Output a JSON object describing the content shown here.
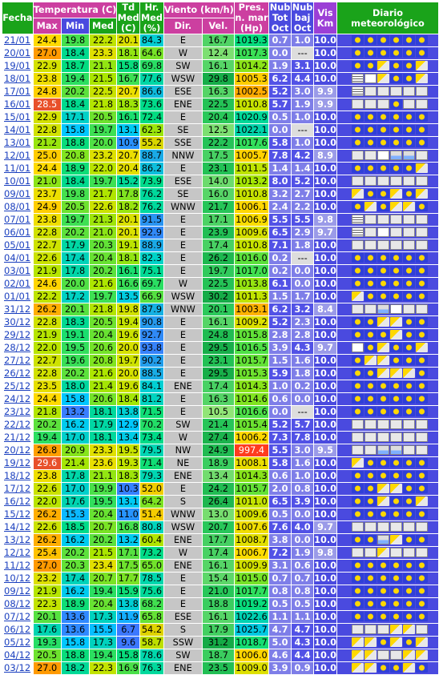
{
  "headers": {
    "fecha": "Fecha",
    "temperatura": "Temperatura (C)",
    "max": "Max",
    "min": "Min",
    "med": "Med",
    "td": "Td Med (C)",
    "hr": "Hr. Med (%)",
    "viento": "Viento (km/h)",
    "dir": "Dir.",
    "vel": "Vel.",
    "pres": "Pres. n. mar (Hp)",
    "nubtot": "Nub Tot Oct",
    "nubbaj": "Nub baj Oct",
    "vis": "Vis Km",
    "diario": "Diario meteorológico"
  },
  "colors": {
    "green": "#1aa31a",
    "pink": "#cc3fa0",
    "blue": "#4a4adf",
    "purple": "#9b3fd6"
  },
  "rows": [
    [
      "21/01",
      "24.4",
      "19.8",
      "22.2",
      "20.1",
      "84.3",
      "E",
      "16.7",
      "1019.3",
      "0.7",
      "1.0",
      "10.0",
      "sun sun sun sun sun sun"
    ],
    [
      "20/01",
      "27.0",
      "18.4",
      "23.3",
      "18.1",
      "64.6",
      "W",
      "12.4",
      "1017.3",
      "0.0",
      "---",
      "10.0",
      "sun sun sun sun sun sun"
    ],
    [
      "19/01",
      "22.9",
      "18.7",
      "21.1",
      "15.8",
      "69.8",
      "SW",
      "16.1",
      "1014.2",
      "1.9",
      "3.1",
      "10.0",
      "sun sun pc sun sun pc"
    ],
    [
      "18/01",
      "23.8",
      "19.4",
      "21.5",
      "16.7",
      "77.6",
      "WSW",
      "29.8",
      "1005.3",
      "6.2",
      "4.4",
      "10.0",
      "fog storm pc sun sun pc"
    ],
    [
      "17/01",
      "24.8",
      "20.2",
      "22.5",
      "20.7",
      "86.6",
      "ESE",
      "16.3",
      "1002.5",
      "5.2",
      "3.0",
      "9.9",
      "fog cloud cloud cloud cloud cloud"
    ],
    [
      "16/01",
      "28.5",
      "18.4",
      "21.8",
      "18.3",
      "73.6",
      "ENE",
      "22.5",
      "1010.8",
      "5.7",
      "1.9",
      "9.9",
      "cloud cloud cloud sun cloud cloud"
    ],
    [
      "15/01",
      "22.9",
      "17.1",
      "20.5",
      "16.1",
      "72.4",
      "E",
      "20.4",
      "1020.9",
      "0.5",
      "1.0",
      "10.0",
      "sun sun sun sun sun sun"
    ],
    [
      "14/01",
      "22.8",
      "15.8",
      "19.7",
      "13.1",
      "62.3",
      "SE",
      "12.5",
      "1022.1",
      "0.0",
      "---",
      "10.0",
      "sun sun sun sun sun sun"
    ],
    [
      "13/01",
      "21.2",
      "18.8",
      "20.0",
      "10.9",
      "55.2",
      "SSE",
      "22.2",
      "1017.6",
      "5.8",
      "1.0",
      "10.0",
      "sun sun sun sun sun sun"
    ],
    [
      "12/01",
      "25.0",
      "20.8",
      "23.2",
      "20.7",
      "88.7",
      "NNW",
      "17.5",
      "1005.7",
      "7.8",
      "4.2",
      "8.9",
      "cloud cloud storm rain rain cloud"
    ],
    [
      "11/01",
      "24.4",
      "18.9",
      "22.0",
      "20.4",
      "86.2",
      "E",
      "23.1",
      "1011.5",
      "1.4",
      "1.4",
      "10.0",
      "sun sun sun sun sun pc"
    ],
    [
      "10/01",
      "21.0",
      "18.4",
      "19.7",
      "15.2",
      "73.9",
      "ESE",
      "14.0",
      "1013.2",
      "8.0",
      "5.2",
      "10.0",
      "cloud cloud cloud cloud cloud cloud"
    ],
    [
      "09/01",
      "23.7",
      "19.8",
      "21.7",
      "17.8",
      "76.2",
      "SE",
      "16.0",
      "1010.8",
      "3.2",
      "2.7",
      "10.0",
      "pc sun sun pc sun pc"
    ],
    [
      "08/01",
      "24.9",
      "20.5",
      "22.6",
      "18.2",
      "76.2",
      "WNW",
      "21.7",
      "1006.1",
      "2.4",
      "2.2",
      "10.0",
      "sun pc sun pc pc sun"
    ],
    [
      "07/01",
      "23.8",
      "19.7",
      "21.3",
      "20.1",
      "91.5",
      "E",
      "17.1",
      "1006.9",
      "5.5",
      "5.5",
      "9.8",
      "fog cloud cloud cloud cloud cloud"
    ],
    [
      "06/01",
      "22.8",
      "20.2",
      "21.0",
      "20.1",
      "92.9",
      "E",
      "23.9",
      "1009.6",
      "6.5",
      "2.9",
      "9.7",
      "fog cloud storm cloud cloud cloud"
    ],
    [
      "05/01",
      "22.7",
      "17.9",
      "20.3",
      "19.1",
      "88.9",
      "E",
      "17.4",
      "1010.8",
      "7.1",
      "1.8",
      "10.0",
      "cloud cloud cloud cloud cloud cloud"
    ],
    [
      "04/01",
      "22.6",
      "17.4",
      "20.4",
      "18.1",
      "82.3",
      "E",
      "26.2",
      "1016.0",
      "0.2",
      "---",
      "10.0",
      "sun sun sun sun sun sun"
    ],
    [
      "03/01",
      "21.9",
      "17.8",
      "20.2",
      "16.1",
      "75.1",
      "E",
      "19.7",
      "1017.0",
      "0.2",
      "0.0",
      "10.0",
      "sun sun sun sun sun sun"
    ],
    [
      "02/01",
      "24.6",
      "20.0",
      "21.6",
      "16.6",
      "69.7",
      "W",
      "22.5",
      "1013.8",
      "6.1",
      "0.0",
      "10.0",
      "sun sun sun sun sun sun"
    ],
    [
      "01/01",
      "22.2",
      "17.2",
      "19.7",
      "13.5",
      "66.9",
      "WSW",
      "30.2",
      "1011.3",
      "1.5",
      "1.7",
      "10.0",
      "pc sun sun sun sun sun"
    ],
    [
      "31/12",
      "26.2",
      "20.1",
      "21.8",
      "19.8",
      "87.9",
      "WNW",
      "20.1",
      "1003.1",
      "6.2",
      "3.2",
      "8.4",
      "cloud cloud rain storm cloud cloud"
    ],
    [
      "30/12",
      "22.8",
      "18.3",
      "20.5",
      "19.4",
      "90.8",
      "E",
      "16.1",
      "1009.2",
      "5.2",
      "2.3",
      "10.0",
      "sun sun pc pc sun sun"
    ],
    [
      "29/12",
      "21.9",
      "19.1",
      "20.4",
      "19.6",
      "92.7",
      "E",
      "24.8",
      "1015.8",
      "2.8",
      "2.8",
      "10.0",
      "sun sun sun pc sun sun"
    ],
    [
      "28/12",
      "22.0",
      "19.5",
      "20.6",
      "20.0",
      "93.8",
      "E",
      "29.5",
      "1016.5",
      "3.9",
      "4.3",
      "9.7",
      "storm sun pc sun sun pc"
    ],
    [
      "27/12",
      "22.7",
      "19.6",
      "20.8",
      "19.7",
      "90.2",
      "E",
      "23.1",
      "1015.7",
      "1.5",
      "1.6",
      "10.0",
      "sun pc pc sun sun sun"
    ],
    [
      "26/12",
      "22.8",
      "20.2",
      "21.6",
      "20.0",
      "88.5",
      "E",
      "29.5",
      "1015.3",
      "5.9",
      "1.8",
      "10.0",
      "sun sun pc pc pc sun"
    ],
    [
      "25/12",
      "23.5",
      "18.0",
      "21.4",
      "19.6",
      "84.1",
      "ENE",
      "17.4",
      "1014.3",
      "1.0",
      "0.2",
      "10.0",
      "sun sun sun sun sun sun"
    ],
    [
      "24/12",
      "24.4",
      "15.8",
      "20.6",
      "18.4",
      "81.2",
      "E",
      "16.3",
      "1014.6",
      "0.6",
      "0.0",
      "10.0",
      "sun sun sun sun sun sun"
    ],
    [
      "23/12",
      "21.8",
      "13.2",
      "18.1",
      "13.8",
      "71.5",
      "E",
      "10.5",
      "1016.6",
      "0.0",
      "---",
      "10.0",
      "sun sun sun sun sun sun"
    ],
    [
      "22/12",
      "20.2",
      "16.2",
      "17.9",
      "12.9",
      "70.2",
      "SW",
      "21.4",
      "1015.4",
      "5.2",
      "5.7",
      "10.0",
      "cloud cloud cloud cloud cloud cloud"
    ],
    [
      "21/12",
      "19.4",
      "17.0",
      "18.1",
      "13.4",
      "73.4",
      "W",
      "27.4",
      "1006.2",
      "7.3",
      "7.8",
      "10.0",
      "cloud cloud cloud cloud cloud cloud"
    ],
    [
      "20/12",
      "26.8",
      "20.9",
      "23.3",
      "19.5",
      "79.5",
      "NW",
      "24.9",
      "997.4",
      "5.5",
      "3.0",
      "9.5",
      "cloud cloud rain rain cloud cloud"
    ],
    [
      "19/12",
      "29.6",
      "21.4",
      "23.6",
      "19.3",
      "71.4",
      "NE",
      "18.9",
      "1008.1",
      "5.8",
      "1.6",
      "10.0",
      "pc sun sun sun sun sun"
    ],
    [
      "18/12",
      "23.8",
      "17.8",
      "21.1",
      "18.3",
      "79.3",
      "ENE",
      "13.4",
      "1014.3",
      "0.6",
      "1.0",
      "10.0",
      "sun sun sun sun sun sun"
    ],
    [
      "17/12",
      "22.6",
      "17.0",
      "19.9",
      "10.3",
      "52.0",
      "E",
      "24.2",
      "1015.7",
      "2.0",
      "0.8",
      "10.0",
      "sun sun pc pc sun sun"
    ],
    [
      "16/12",
      "22.0",
      "17.6",
      "19.5",
      "13.1",
      "64.2",
      "S",
      "26.4",
      "1011.0",
      "6.5",
      "3.9",
      "10.0",
      "sun sun pc sun sun pc"
    ],
    [
      "15/12",
      "26.2",
      "15.3",
      "20.4",
      "11.0",
      "51.4",
      "WNW",
      "13.0",
      "1009.6",
      "0.5",
      "0.0",
      "10.0",
      "sun sun sun sun sun sun"
    ],
    [
      "14/12",
      "22.6",
      "18.5",
      "20.7",
      "16.8",
      "80.8",
      "WSW",
      "20.7",
      "1007.6",
      "7.6",
      "4.0",
      "9.7",
      "cloud cloud cloud cloud cloud cloud"
    ],
    [
      "13/12",
      "26.2",
      "16.2",
      "20.2",
      "13.2",
      "60.4",
      "ENE",
      "17.7",
      "1008.7",
      "3.8",
      "0.0",
      "10.0",
      "sun sun rain pc sun sun"
    ],
    [
      "12/12",
      "25.4",
      "20.2",
      "21.5",
      "17.1",
      "73.2",
      "W",
      "17.4",
      "1006.7",
      "7.2",
      "1.9",
      "9.8",
      "cloud cloud pc cloud cloud cloud"
    ],
    [
      "11/12",
      "27.0",
      "20.3",
      "23.4",
      "17.5",
      "65.0",
      "ENE",
      "16.1",
      "1009.9",
      "3.1",
      "0.6",
      "10.0",
      "sun sun sun sun sun sun"
    ],
    [
      "10/12",
      "23.2",
      "17.4",
      "20.7",
      "17.7",
      "78.5",
      "E",
      "15.4",
      "1015.0",
      "0.7",
      "0.7",
      "10.0",
      "sun sun sun sun sun sun"
    ],
    [
      "09/12",
      "21.9",
      "16.2",
      "19.4",
      "15.9",
      "75.6",
      "E",
      "21.0",
      "1017.7",
      "0.8",
      "0.8",
      "10.0",
      "sun sun sun sun sun sun"
    ],
    [
      "08/12",
      "22.3",
      "18.9",
      "20.4",
      "13.8",
      "68.2",
      "E",
      "18.8",
      "1019.2",
      "0.5",
      "0.5",
      "10.0",
      "sun sun sun sun sun sun"
    ],
    [
      "07/12",
      "20.1",
      "13.6",
      "17.3",
      "11.9",
      "65.8",
      "ESE",
      "16.1",
      "1022.6",
      "1.1",
      "1.1",
      "10.0",
      "sun sun sun sun sun sun"
    ],
    [
      "06/12",
      "17.6",
      "13.6",
      "15.5",
      "6.7",
      "54.2",
      "S",
      "17.9",
      "1025.7",
      "4.7",
      "4.7",
      "10.0",
      "cloud cloud cloud pc pc cloud"
    ],
    [
      "05/12",
      "19.3",
      "15.8",
      "17.3",
      "9.6",
      "58.7",
      "SSW",
      "31.2",
      "1018.7",
      "5.0",
      "4.3",
      "10.0",
      "pc pc sun pc sun pc"
    ],
    [
      "04/12",
      "20.5",
      "18.8",
      "19.4",
      "15.8",
      "78.6",
      "SW",
      "18.7",
      "1006.0",
      "4.6",
      "4.4",
      "10.0",
      "pc pc cloud cloud pc pc"
    ],
    [
      "03/12",
      "27.0",
      "18.2",
      "22.3",
      "16.9",
      "76.3",
      "ENE",
      "23.5",
      "1009.0",
      "3.9",
      "0.9",
      "10.0",
      "pc pc sun sun pc sun"
    ]
  ]
}
